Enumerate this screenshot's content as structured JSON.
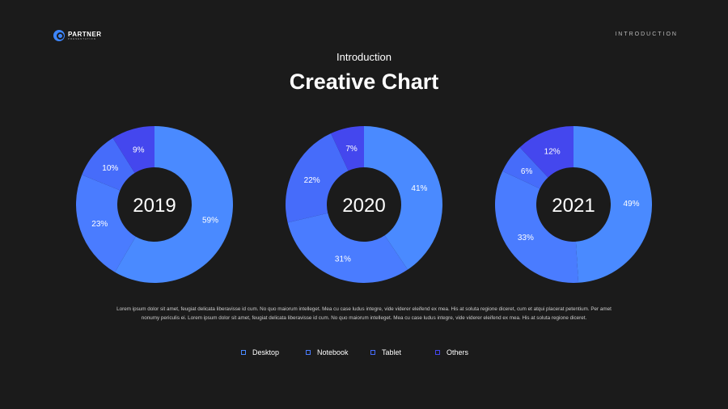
{
  "logo": {
    "name": "PARTNER",
    "sub": "PRESENTATION"
  },
  "header": {
    "section": "INTRODUCTION",
    "subtitle": "Introduction",
    "title": "Creative Chart"
  },
  "chart_data": [
    {
      "type": "pie",
      "title": "2019",
      "categories": [
        "Desktop",
        "Notebook",
        "Tablet",
        "Others"
      ],
      "values": [
        59,
        23,
        10,
        9
      ],
      "labels": [
        "59%",
        "23%",
        "10%",
        "9%"
      ]
    },
    {
      "type": "pie",
      "title": "2020",
      "categories": [
        "Desktop",
        "Notebook",
        "Tablet",
        "Others"
      ],
      "values": [
        41,
        31,
        22,
        7
      ],
      "labels": [
        "41%",
        "31%",
        "22%",
        "7%"
      ]
    },
    {
      "type": "pie",
      "title": "2021",
      "categories": [
        "Desktop",
        "Notebook",
        "Tablet",
        "Others"
      ],
      "values": [
        49,
        33,
        6,
        12
      ],
      "labels": [
        "49%",
        "33%",
        "6%",
        "12%"
      ]
    }
  ],
  "colors": [
    "#4a8aff",
    "#4a7cff",
    "#466cfa",
    "#4447ee"
  ],
  "paragraph": "Lorem ipsum dolor sit amet, feugiat delicata liberavisse id cum. No quo maiorum intelleget. Mea cu case ludus integre, vide viderer eleifend ex mea. His at soluta regione diceret, cum et atqui placerat petentium. Per amet nonumy periculis ei. Lorem ipsum dolor sit amet, feugiat delicata liberavisse id cum. No quo maiorum intelleget. Mea cu case ludus integre, vide viderer eleifend ex mea. His at soluta regione diceret.",
  "legend": [
    "Desktop",
    "Notebook",
    "Tablet",
    "Others"
  ]
}
